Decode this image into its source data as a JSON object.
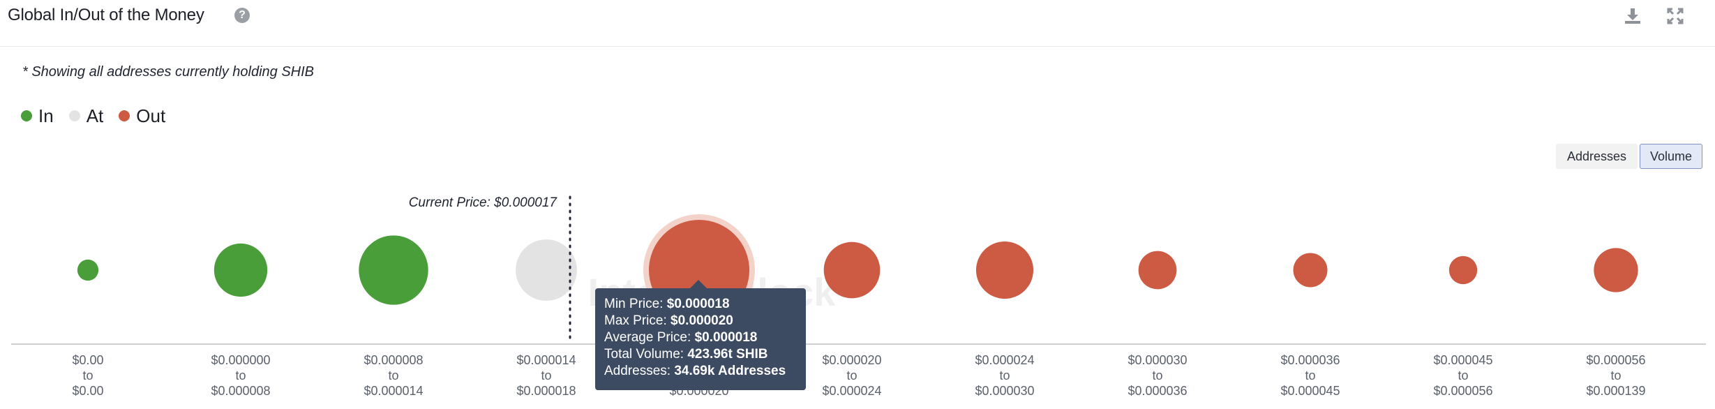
{
  "header": {
    "title": "Global In/Out of the Money",
    "help_symbol": "?",
    "download_icon": "download-icon",
    "fullscreen_icon": "fullscreen-icon"
  },
  "note": "* Showing all addresses currently holding SHIB",
  "legend": [
    {
      "label": "In",
      "color": "#4a9e3a"
    },
    {
      "label": "At",
      "color": "#e3e3e3"
    },
    {
      "label": "Out",
      "color": "#cd5a42"
    }
  ],
  "toggles": {
    "addresses": "Addresses",
    "volume": "Volume",
    "selected": "Volume"
  },
  "chart_data": {
    "type": "bubble",
    "current_price_label": "Current Price: $0.000017",
    "current_price": 1.7e-05,
    "watermark": "IntoTheBlock",
    "highlighted_index": 4,
    "categories": [
      {
        "from": "$0.00",
        "to": "$0.00",
        "status": "In",
        "relative_size": 0.21
      },
      {
        "from": "$0.000000",
        "to": "$0.000008",
        "status": "In",
        "relative_size": 0.53
      },
      {
        "from": "$0.000008",
        "to": "$0.000014",
        "status": "In",
        "relative_size": 0.69
      },
      {
        "from": "$0.000014",
        "to": "$0.000018",
        "status": "At",
        "relative_size": 0.61
      },
      {
        "from": "$0.000018",
        "to": "$0.000020",
        "status": "Out",
        "relative_size": 1.0
      },
      {
        "from": "$0.000020",
        "to": "$0.000024",
        "status": "Out",
        "relative_size": 0.56
      },
      {
        "from": "$0.000024",
        "to": "$0.000030",
        "status": "Out",
        "relative_size": 0.57
      },
      {
        "from": "$0.000030",
        "to": "$0.000036",
        "status": "Out",
        "relative_size": 0.38
      },
      {
        "from": "$0.000036",
        "to": "$0.000045",
        "status": "Out",
        "relative_size": 0.34
      },
      {
        "from": "$0.000045",
        "to": "$0.000056",
        "status": "Out",
        "relative_size": 0.28
      },
      {
        "from": "$0.000056",
        "to": "$0.000139",
        "status": "Out",
        "relative_size": 0.44
      }
    ],
    "tooltip": {
      "min_price_label": "Min Price:",
      "min_price": "$0.000018",
      "max_price_label": "Max Price:",
      "max_price": "$0.000020",
      "avg_price_label": "Average Price:",
      "avg_price": "$0.000018",
      "volume_label": "Total Volume:",
      "volume": "423.96t SHIB",
      "addresses_label": "Addresses:",
      "addresses": "34.69k Addresses"
    },
    "axis_connector": "to"
  }
}
